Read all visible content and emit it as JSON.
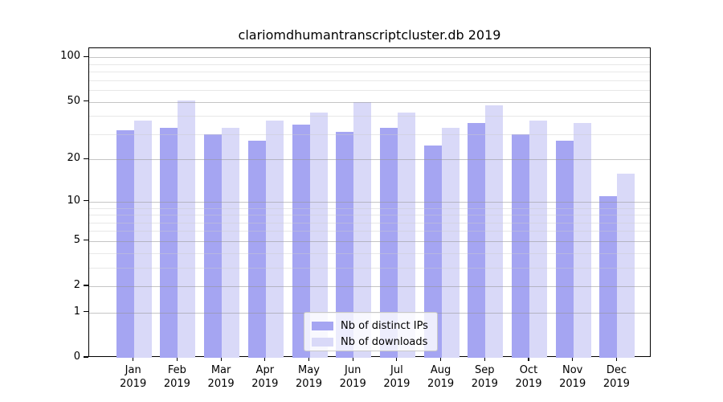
{
  "title": "clariomdhumantranscriptcluster.db 2019",
  "chart_data": {
    "type": "bar",
    "title": "clariomdhumantranscriptcluster.db 2019",
    "categories": [
      "Jan",
      "Feb",
      "Mar",
      "Apr",
      "May",
      "Jun",
      "Jul",
      "Aug",
      "Sep",
      "Oct",
      "Nov",
      "Dec"
    ],
    "year_label": "2019",
    "series": [
      {
        "name": "Nb of distinct IPs",
        "color": "#a5a5f2",
        "values": [
          32,
          33,
          30,
          27,
          35,
          31,
          33,
          25,
          36,
          30,
          27,
          11
        ]
      },
      {
        "name": "Nb of downloads",
        "color": "#d9d9f8",
        "values": [
          37,
          51,
          33,
          37,
          42,
          50,
          42,
          33,
          47,
          37,
          36,
          16
        ]
      }
    ],
    "y_scale": "log1p",
    "y_ticks": [
      0,
      1,
      2,
      5,
      10,
      20,
      50,
      100
    ],
    "y_minor_ticks": [
      3,
      4,
      6,
      7,
      8,
      9,
      30,
      40,
      60,
      70,
      80,
      90
    ],
    "ylim": [
      0,
      115
    ],
    "grid": true,
    "legend_position": "lower center"
  },
  "legend": {
    "items": [
      {
        "label": "Nb of distinct IPs"
      },
      {
        "label": "Nb of downloads"
      }
    ]
  },
  "colors": {
    "bar_ips": "#a5a5f2",
    "bar_downloads": "#d9d9f8",
    "major_grid": "#c8c8c8",
    "minor_grid": "#e8e8e8",
    "spine": "#000000",
    "background": "#ffffff"
  }
}
